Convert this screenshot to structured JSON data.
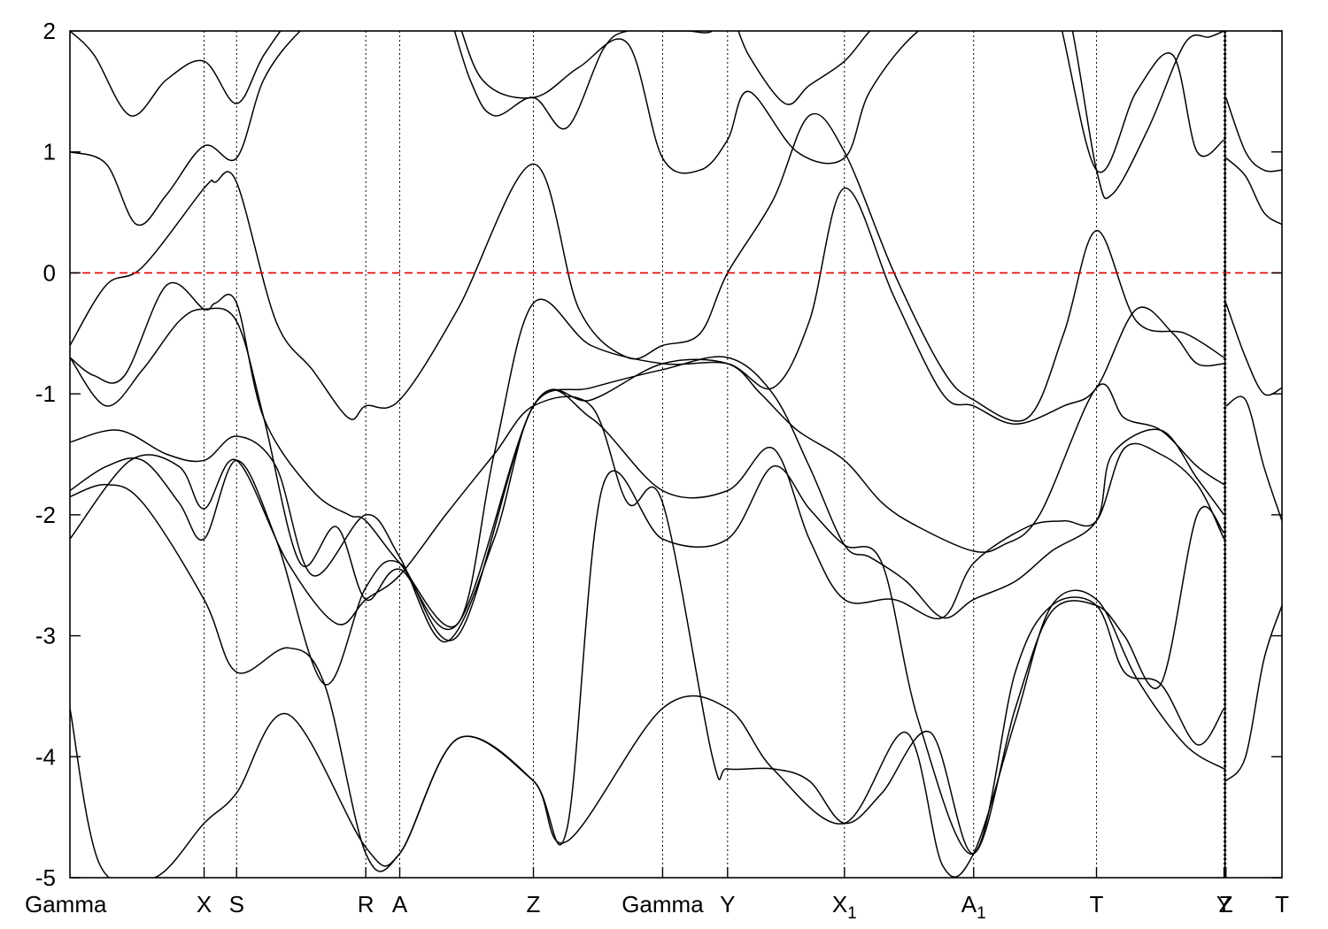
{
  "chart_data": {
    "type": "line",
    "title": "",
    "xlabel": "",
    "ylabel": "",
    "ylim": [
      -5,
      2
    ],
    "grid": false,
    "legend": "none",
    "k_path_ticks": [
      {
        "label": "Gamma",
        "x": 0.0
      },
      {
        "label": "X",
        "x": 1.107
      },
      {
        "label": "S",
        "x": 1.375
      },
      {
        "label": "R",
        "x": 2.441
      },
      {
        "label": "A",
        "x": 2.721
      },
      {
        "label": "Z",
        "x": 3.824
      },
      {
        "label": "Gamma",
        "x": 4.89
      },
      {
        "label": "Y",
        "x": 5.426
      },
      {
        "label": "X",
        "sub": "1",
        "x": 6.39
      },
      {
        "label": "A",
        "sub": "1",
        "x": 7.456
      },
      {
        "label": "T",
        "x": 8.47
      },
      {
        "label": "Y",
        "x": 9.522
      },
      {
        "label": "Z",
        "x": 9.538
      },
      {
        "label": "T",
        "x": 10.0
      }
    ],
    "x_range": [
      0,
      10.0
    ],
    "panel_break_x": 9.53,
    "yticks": [
      "2",
      "1",
      "0",
      "-1",
      "-2",
      "-3",
      "-4",
      "-5"
    ],
    "fermi_level": {
      "y": 0,
      "color": "#e00000",
      "style": "dashed"
    },
    "band_color": "#000000",
    "series": [
      {
        "x": [
          0,
          0.3,
          0.6,
          1.107,
          1.2,
          1.375,
          1.7,
          2.0,
          2.3,
          2.441,
          2.721,
          3.2,
          3.824,
          4.2,
          4.6,
          4.89,
          5.2,
          5.426,
          5.8,
          6.1,
          6.39,
          6.8,
          7.2,
          7.456,
          7.9,
          8.2,
          8.47,
          8.8,
          9.2,
          9.522
        ],
        "values": [
          -0.6,
          -0.1,
          0.05,
          0.7,
          0.75,
          0.75,
          -0.4,
          -0.8,
          -1.2,
          -1.1,
          -1.05,
          -0.3,
          0.9,
          -0.3,
          -0.7,
          -0.6,
          -0.5,
          0.0,
          0.6,
          1.3,
          1.0,
          0.0,
          -0.8,
          -1.05,
          -1.2,
          -0.5,
          0.35,
          -0.4,
          -0.5,
          -0.7
        ]
      },
      {
        "x": [
          0,
          0.2,
          0.45,
          0.8,
          1.107,
          1.2,
          1.375,
          1.6,
          2.0,
          2.3,
          2.441,
          2.721,
          3.2,
          3.5,
          3.824,
          4.3,
          4.89,
          5.426,
          5.8,
          6.1,
          6.39,
          6.8,
          7.2,
          7.456,
          7.8,
          8.2,
          8.47,
          8.8,
          9.1,
          9.3,
          9.522
        ],
        "values": [
          -0.7,
          -0.85,
          -0.85,
          -0.1,
          -0.3,
          -0.25,
          -0.25,
          -1.2,
          -1.8,
          -2.0,
          -2.05,
          -2.4,
          -2.9,
          -1.5,
          -0.25,
          -0.6,
          -0.75,
          -0.75,
          -0.95,
          -0.4,
          0.7,
          -0.2,
          -1.0,
          -1.1,
          -1.25,
          -1.1,
          -0.95,
          -0.3,
          -0.5,
          -0.75,
          -0.75
        ]
      },
      {
        "x": [
          0,
          0.3,
          0.6,
          0.9,
          1.107,
          1.375,
          1.6,
          1.9,
          2.2,
          2.441,
          2.721,
          3.2,
          3.824,
          4.3,
          4.89,
          5.426,
          5.7,
          6.0,
          6.39,
          6.7,
          7.0,
          7.456,
          7.7,
          8.0,
          8.47,
          8.7,
          9.0,
          9.3,
          9.522
        ],
        "values": [
          -0.7,
          -1.1,
          -0.8,
          -0.4,
          -0.3,
          -0.4,
          -1.2,
          -2.4,
          -2.1,
          -2.7,
          -2.45,
          -2.9,
          -1.1,
          -1.05,
          -0.75,
          -0.75,
          -1.0,
          -1.3,
          -1.55,
          -1.9,
          -2.1,
          -2.3,
          -2.25,
          -2.0,
          -0.95,
          -1.2,
          -1.3,
          -1.6,
          -1.75
        ]
      },
      {
        "x": [
          0,
          0.4,
          0.8,
          1.107,
          1.375,
          1.7,
          2.0,
          2.441,
          2.721,
          3.1,
          3.5,
          3.824,
          4.3,
          4.89,
          5.426,
          5.8,
          6.1,
          6.39,
          6.6,
          6.9,
          7.2,
          7.456,
          7.8,
          8.1,
          8.47,
          8.6,
          9.0,
          9.3,
          9.522
        ],
        "values": [
          -1.4,
          -1.3,
          -1.5,
          -1.55,
          -1.35,
          -1.6,
          -2.5,
          -2.0,
          -2.35,
          -3.05,
          -2.2,
          -1.1,
          -0.95,
          -0.8,
          -0.7,
          -1.0,
          -1.6,
          -2.25,
          -2.35,
          -2.55,
          -2.85,
          -2.7,
          -2.55,
          -2.3,
          -2.05,
          -1.5,
          -1.3,
          -1.7,
          -2.0
        ]
      },
      {
        "x": [
          0,
          0.3,
          0.6,
          0.9,
          1.107,
          1.375,
          1.7,
          2.1,
          2.441,
          2.721,
          3.2,
          3.824,
          4.3,
          4.89,
          5.426,
          5.8,
          6.1,
          6.39,
          6.8,
          7.2,
          7.456,
          7.9,
          8.2,
          8.47,
          8.7,
          9.0,
          9.3,
          9.522
        ],
        "values": [
          -1.8,
          -1.6,
          -1.55,
          -1.9,
          -2.2,
          -1.55,
          -2.2,
          -3.4,
          -2.6,
          -2.4,
          -3.0,
          -1.1,
          -1.2,
          -1.8,
          -1.8,
          -1.45,
          -2.2,
          -2.7,
          -2.7,
          -2.85,
          -2.4,
          -2.1,
          -2.05,
          -2.05,
          -1.45,
          -1.5,
          -1.75,
          -2.2
        ]
      },
      {
        "x": [
          0,
          0.3,
          0.6,
          1.107,
          1.375,
          1.8,
          2.1,
          2.441,
          2.721,
          3.2,
          3.824,
          4.1,
          4.4,
          4.89,
          5.426,
          5.8,
          6.1,
          6.39,
          6.7,
          7.0,
          7.456,
          7.8,
          8.1,
          8.47,
          8.7,
          9.0,
          9.3,
          9.522
        ],
        "values": [
          -1.85,
          -1.75,
          -1.9,
          -2.7,
          -3.3,
          -3.1,
          -3.4,
          -4.8,
          -4.8,
          -3.85,
          -4.2,
          -4.6,
          -1.75,
          -2.2,
          -2.2,
          -1.6,
          -1.95,
          -2.25,
          -2.4,
          -3.7,
          -4.8,
          -3.3,
          -2.75,
          -2.75,
          -3.3,
          -3.4,
          -3.9,
          -3.6
        ]
      },
      {
        "x": [
          0,
          0.25,
          0.7,
          1.107,
          1.375,
          1.8,
          2.441,
          2.721,
          3.2,
          3.824,
          4.1,
          4.89,
          5.426,
          5.8,
          6.39,
          6.9,
          7.2,
          7.456,
          7.8,
          8.1,
          8.47,
          8.8,
          9.2,
          9.522
        ],
        "values": [
          -3.6,
          -4.9,
          -5.0,
          -4.55,
          -4.3,
          -3.65,
          -4.75,
          -4.8,
          -3.85,
          -4.2,
          -4.7,
          -3.6,
          -3.6,
          -4.1,
          -4.55,
          -3.8,
          -4.9,
          -4.8,
          -3.7,
          -2.75,
          -2.7,
          -3.35,
          -3.9,
          -4.1
        ]
      },
      {
        "x": [
          0,
          0.5,
          0.9,
          1.107,
          1.375,
          1.8,
          2.2,
          2.441,
          2.721,
          3.1,
          3.5,
          3.824,
          4.3,
          4.6,
          4.89,
          5.3,
          5.426,
          5.8,
          6.1,
          6.39,
          6.7,
          7.1,
          7.456,
          7.8,
          8.1,
          8.47,
          8.7,
          9.0,
          9.3,
          9.522
        ],
        "values": [
          -2.2,
          -1.55,
          -1.6,
          -1.95,
          -1.55,
          -2.4,
          -2.9,
          -2.7,
          -2.5,
          -2.0,
          -1.5,
          -1.1,
          -1.1,
          -1.9,
          -1.9,
          -4.0,
          -4.1,
          -4.1,
          -4.2,
          -4.55,
          -4.3,
          -3.8,
          -4.8,
          -3.6,
          -2.8,
          -2.75,
          -3.0,
          -3.4,
          -2.0,
          -2.15
        ]
      },
      {
        "x": [
          0,
          0.3,
          0.55,
          0.8,
          1.107,
          1.375,
          1.6,
          1.9,
          2.2,
          2.441,
          2.721,
          3.1,
          3.4,
          3.824,
          4.2,
          4.6,
          4.89,
          5.2,
          5.426,
          5.6,
          6.0,
          6.39,
          6.6,
          7.0,
          7.456,
          7.8,
          8.1,
          8.47,
          8.8,
          9.1,
          9.3,
          9.522
        ],
        "values": [
          1.0,
          0.9,
          0.4,
          0.65,
          1.05,
          0.95,
          1.6,
          2.0,
          2.2,
          2.3,
          2.4,
          2.3,
          1.6,
          1.45,
          1.7,
          1.9,
          0.95,
          0.85,
          1.1,
          1.5,
          1.0,
          0.95,
          1.5,
          2.0,
          2.2,
          2.3,
          2.3,
          0.85,
          1.5,
          1.8,
          1.0,
          1.1
        ]
      },
      {
        "x": [
          0,
          0.2,
          0.5,
          0.8,
          1.107,
          1.375,
          1.6,
          1.9,
          2.2,
          2.441,
          2.721,
          3.0,
          3.3,
          3.5,
          3.824,
          4.1,
          4.4,
          4.6,
          4.89,
          5.1,
          5.3,
          5.426,
          5.6,
          5.9,
          6.1,
          6.39,
          6.6,
          6.9,
          7.2,
          7.456,
          7.9,
          8.2,
          8.47,
          8.6,
          8.9,
          9.2,
          9.4,
          9.522
        ],
        "values": [
          2.0,
          1.8,
          1.3,
          1.6,
          1.75,
          1.4,
          1.8,
          2.2,
          2.4,
          2.5,
          2.6,
          2.5,
          1.6,
          1.3,
          1.45,
          1.2,
          1.85,
          2.0,
          2.0,
          2.0,
          2.0,
          2.2,
          1.8,
          1.4,
          1.55,
          1.75,
          2.0,
          2.3,
          2.4,
          2.5,
          2.5,
          2.3,
          0.85,
          0.65,
          1.2,
          1.9,
          1.95,
          2.0
        ]
      }
    ],
    "extra_panel": {
      "x": [
        9.538,
        9.7,
        9.85,
        10.0
      ],
      "series": [
        {
          "values": [
            1.45,
            1.0,
            0.85,
            0.85
          ]
        },
        {
          "values": [
            0.95,
            0.8,
            0.5,
            0.4
          ]
        },
        {
          "values": [
            -0.25,
            -0.7,
            -1.0,
            -0.95
          ]
        },
        {
          "values": [
            -1.1,
            -1.05,
            -1.6,
            -2.05
          ]
        },
        {
          "values": [
            -4.2,
            -4.0,
            -3.2,
            -2.75
          ]
        }
      ]
    }
  }
}
